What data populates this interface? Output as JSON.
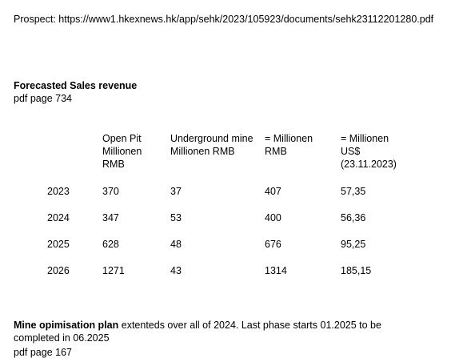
{
  "prospect": {
    "label": "Prospect:",
    "url": "https://www1.hkexnews.hk/app/sehk/2023/105923/documents/sehk23112201280.pdf"
  },
  "sales": {
    "title": "Forecasted Sales revenue",
    "page_ref": "pdf page 734",
    "table": {
      "headers": [
        [
          "Open Pit",
          "Millionen",
          "RMB"
        ],
        [
          "Underground mine",
          "Millionen RMB"
        ],
        [
          "= Millionen",
          "RMB"
        ],
        [
          "= Millionen",
          "US$",
          "(23.11.2023)"
        ]
      ],
      "rows": [
        {
          "year": "2023",
          "open_pit": "370",
          "underground": "37",
          "total_rmb": "407",
          "total_usd": "57,35"
        },
        {
          "year": "2024",
          "open_pit": "347",
          "underground": "53",
          "total_rmb": "400",
          "total_usd": "56,36"
        },
        {
          "year": "2025",
          "open_pit": "628",
          "underground": "48",
          "total_rmb": "676",
          "total_usd": "95,25"
        },
        {
          "year": "2026",
          "open_pit": "1271",
          "underground": "43",
          "total_rmb": "1314",
          "total_usd": "185,15"
        }
      ]
    }
  },
  "mine_plan": {
    "bold_label": "Mine opimisation plan",
    "text": " extenteds over all of 2024. Last phase starts 01.2025 to be completed in 06.2025",
    "page_ref": "pdf page 167"
  }
}
